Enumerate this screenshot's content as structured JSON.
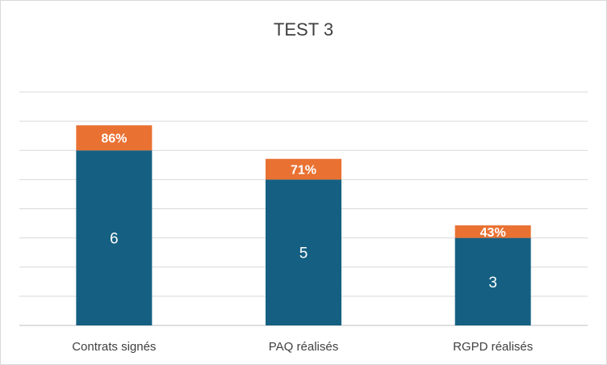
{
  "chart_data": {
    "type": "bar",
    "stacked": true,
    "title": "TEST 3",
    "categories": [
      "Contrats signés",
      "PAQ réalisés",
      "RGPD réalisés"
    ],
    "series": [
      {
        "values": [
          6,
          5,
          3
        ],
        "color": "#156082"
      },
      {
        "values": [
          0.86,
          0.71,
          0.43
        ],
        "labels": [
          "86%",
          "71%",
          "43%"
        ],
        "color": "#E97132"
      }
    ],
    "ylim": [
      0,
      8
    ],
    "grid": true,
    "legend": "none"
  }
}
